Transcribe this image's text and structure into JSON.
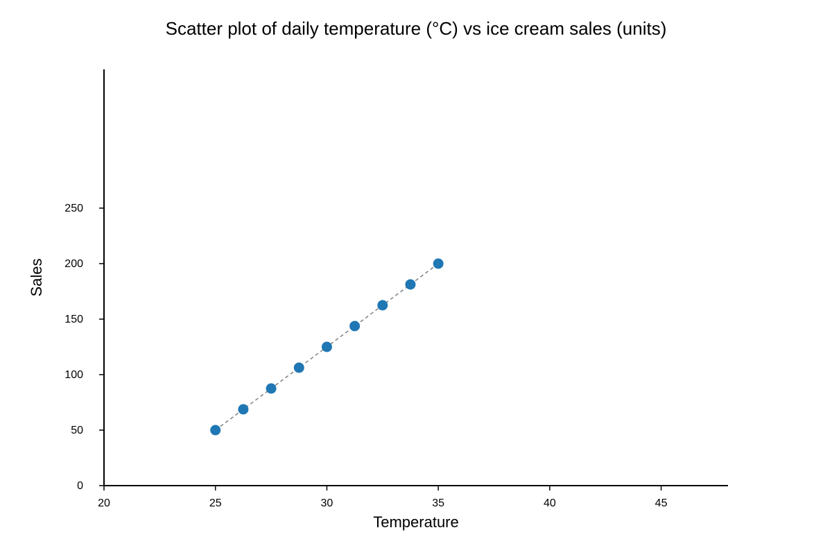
{
  "chart_data": {
    "type": "scatter",
    "title": "Scatter plot of daily temperature (°C) vs ice cream sales (units)",
    "xlabel": "Temperature",
    "ylabel": "Sales",
    "xlim": [
      20,
      48
    ],
    "ylim": [
      0,
      375
    ],
    "xticks": [
      20,
      25,
      30,
      35,
      40,
      45
    ],
    "yticks": [
      0,
      50,
      100,
      150,
      200,
      250
    ],
    "grid": false,
    "legend": "none",
    "trendline": {
      "style": "dashed",
      "color": "#808080"
    },
    "series": [
      {
        "color": "#1f77b4",
        "x": [
          25,
          26.25,
          27.5,
          28.75,
          30,
          31.25,
          32.5,
          33.75,
          35
        ],
        "y": [
          50,
          68.75,
          87.5,
          106.25,
          125,
          143.75,
          162.5,
          181.25,
          200
        ]
      }
    ]
  }
}
